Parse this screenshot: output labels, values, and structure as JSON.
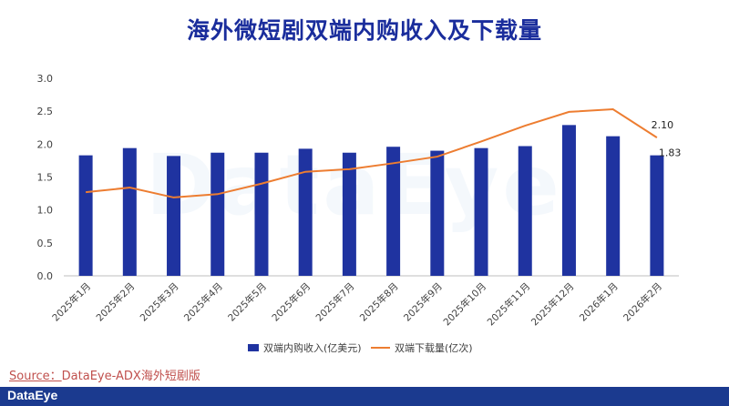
{
  "header": {
    "title": "海外微短剧双端内购收入及下载量"
  },
  "watermark": {
    "text": "DataEye"
  },
  "source": {
    "label": "Source：",
    "text": "DataEye-ADX海外短剧版"
  },
  "footer": {
    "logo": "DataEye"
  },
  "colors": {
    "bar": "#1f33a0",
    "line": "#ed7d31",
    "title": "#1a2d9c",
    "footer": "#1b3a8f"
  },
  "chart_data": {
    "type": "bar",
    "title": "海外微短剧双端内购收入及下载量",
    "categories": [
      "2025年1月",
      "2025年2月",
      "2025年3月",
      "2025年4月",
      "2025年5月",
      "2025年6月",
      "2025年7月",
      "2025年8月",
      "2025年9月",
      "2025年10月",
      "2025年11月",
      "2025年12月",
      "2026年1月",
      "2026年2月"
    ],
    "series": [
      {
        "name": "双端内购收入(亿美元)",
        "type": "bar",
        "values": [
          1.83,
          1.94,
          1.82,
          1.87,
          1.87,
          1.93,
          1.87,
          1.96,
          1.9,
          1.94,
          1.97,
          2.29,
          2.12,
          1.83
        ]
      },
      {
        "name": "双端下载量(亿次)",
        "type": "line",
        "values": [
          1.27,
          1.34,
          1.19,
          1.24,
          1.4,
          1.58,
          1.62,
          1.71,
          1.81,
          2.04,
          2.28,
          2.49,
          2.53,
          2.1
        ]
      }
    ],
    "data_labels": [
      {
        "series": 0,
        "index": 13,
        "text": "1.83"
      },
      {
        "series": 1,
        "index": 13,
        "text": "2.10"
      }
    ],
    "y_ticks": [
      "0.0",
      "0.5",
      "1.0",
      "1.5",
      "2.0",
      "2.5",
      "3.0"
    ],
    "ylim": [
      0,
      3.0
    ],
    "xlabel": "",
    "ylabel": "",
    "grid": false,
    "legend_position": "bottom"
  }
}
